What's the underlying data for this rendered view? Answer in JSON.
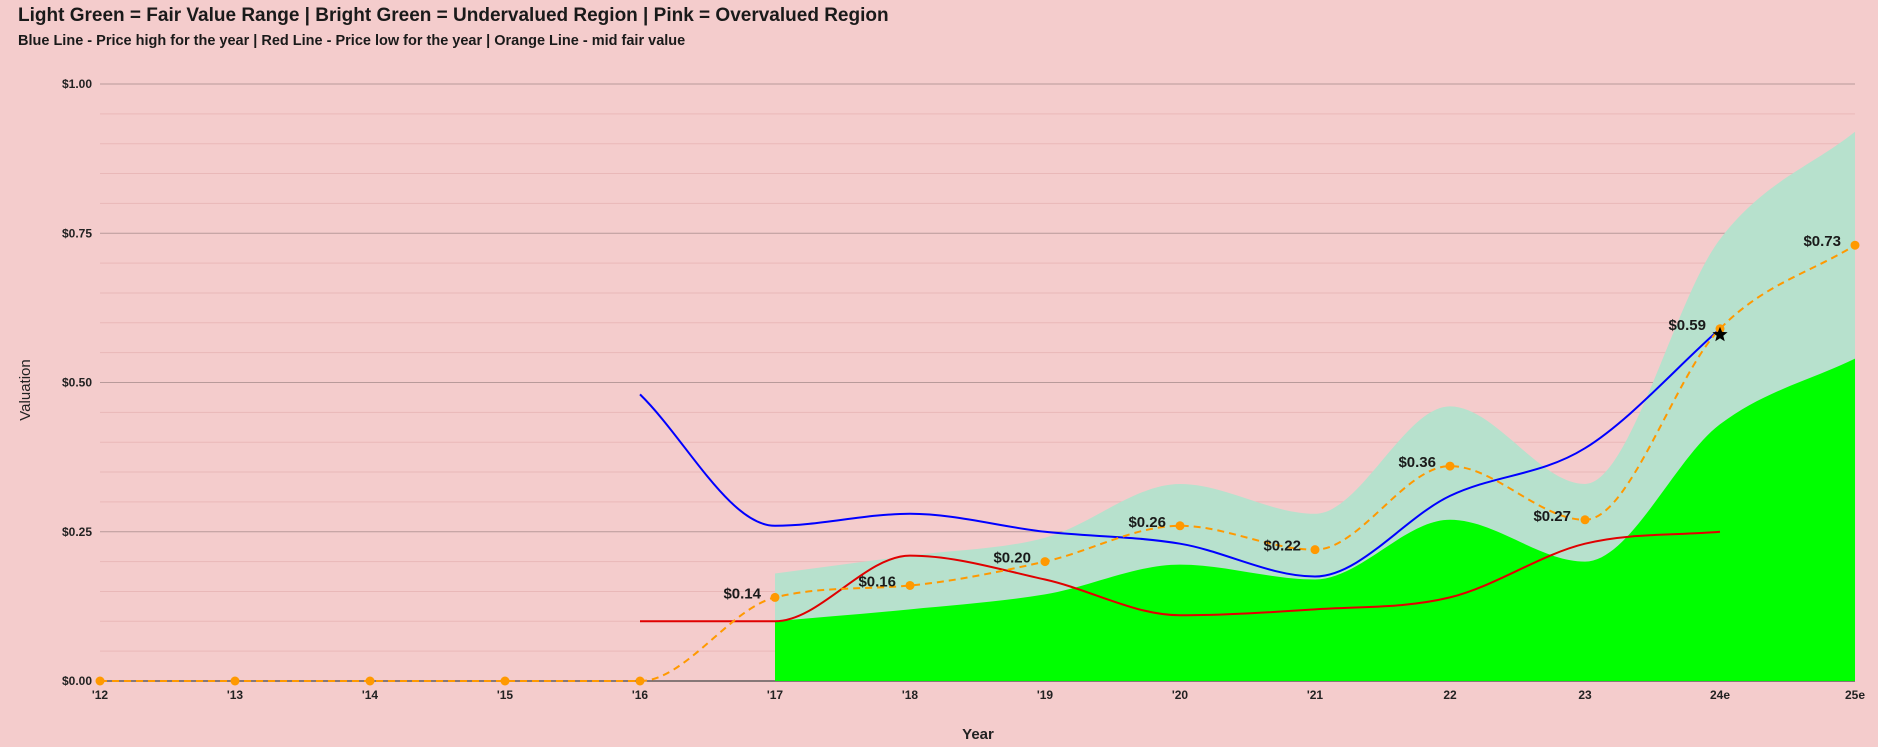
{
  "chart_data": {
    "type": "line",
    "title": "Light Green = Fair Value Range | Bright Green = Undervalued Region | Pink = Overvalued Region",
    "subtitle": "Blue Line - Price high for the year | Red Line - Price low for the year | Orange Line - mid fair value",
    "xlabel": "Year",
    "ylabel": "Valuation",
    "categories": [
      "'12",
      "'13",
      "'14",
      "'15",
      "'16",
      "'17",
      "'18",
      "'19",
      "'20",
      "'21",
      "22",
      "23",
      "24e",
      "25e"
    ],
    "ylim": [
      0,
      1.0
    ],
    "yticks": [
      "$0.00",
      "$0.25",
      "$0.50",
      "$0.75",
      "$1.00"
    ],
    "grid": true,
    "colors": {
      "background": "#f4cccc",
      "fair_value_range": "#b7e1cd",
      "undervalued": "#00ff00",
      "price_high": "#0000ff",
      "price_low": "#e00000",
      "mid_fair_value": "#ff9900"
    },
    "series": [
      {
        "key": "fair_upper",
        "values": [
          null,
          null,
          null,
          null,
          null,
          0.18,
          0.21,
          0.24,
          0.33,
          0.28,
          0.46,
          0.33,
          0.74,
          0.92
        ]
      },
      {
        "key": "undervalued_upper",
        "values": [
          null,
          null,
          null,
          null,
          null,
          0.1,
          0.12,
          0.145,
          0.195,
          0.17,
          0.27,
          0.2,
          0.43,
          0.54
        ]
      },
      {
        "key": "price_high",
        "values": [
          null,
          null,
          null,
          null,
          0.48,
          0.26,
          0.28,
          0.25,
          0.23,
          0.175,
          0.31,
          0.39,
          0.59,
          null
        ]
      },
      {
        "key": "price_low",
        "values": [
          null,
          null,
          null,
          null,
          0.1,
          0.1,
          0.21,
          0.17,
          0.11,
          0.12,
          0.14,
          0.23,
          0.25,
          null
        ]
      },
      {
        "key": "mid_fair_value",
        "values": [
          0,
          0,
          0,
          0,
          0,
          0.14,
          0.16,
          0.2,
          0.26,
          0.22,
          0.36,
          0.27,
          0.59,
          0.73
        ],
        "labels": [
          "",
          "",
          "",
          "",
          "",
          "$0.14",
          "$0.16",
          "$0.20",
          "$0.26",
          "$0.22",
          "$0.36",
          "$0.27",
          "$0.59",
          "$0.73"
        ]
      }
    ],
    "marker": {
      "category": "24e",
      "value": 0.58,
      "symbol": "star-icon"
    }
  }
}
